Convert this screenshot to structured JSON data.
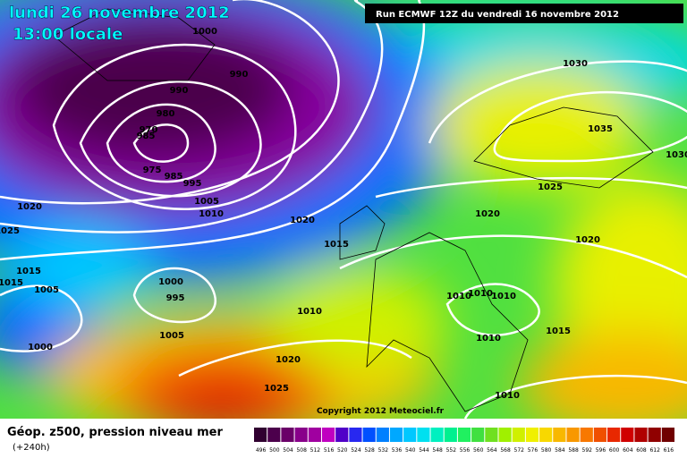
{
  "header": {
    "date": "lundi 26 novembre 2012",
    "time": "13:00 locale",
    "run": "Run ECMWF 12Z du vendredi 16 novembre 2012"
  },
  "isobar_labels": [
    "1000",
    "990",
    "990",
    "980",
    "970",
    "985",
    "975",
    "985",
    "995",
    "1005",
    "1010",
    "1020",
    "1025",
    "1020",
    "1015",
    "1015",
    "1015",
    "1005",
    "1000",
    "995",
    "1010",
    "1005",
    "1000",
    "1020",
    "1025",
    "1030",
    "1035",
    "1030",
    "1025",
    "1020",
    "1020",
    "1010",
    "1010",
    "1010",
    "1010",
    "1015",
    "1010"
  ],
  "copyright": "Copyright 2012 Meteociel.fr",
  "footer": {
    "title": "Géop. z500, pression niveau mer",
    "lead": "(+240h)"
  },
  "scale": {
    "labels": [
      496,
      500,
      504,
      508,
      512,
      516,
      520,
      524,
      528,
      532,
      536,
      540,
      544,
      548,
      552,
      556,
      560,
      564,
      568,
      572,
      576,
      580,
      584,
      588,
      592,
      596,
      600,
      604,
      608,
      612,
      616
    ],
    "colors": [
      "#300030",
      "#4c004c",
      "#6a0068",
      "#88008a",
      "#a000a0",
      "#c000c0",
      "#5000c8",
      "#2828f0",
      "#0050ff",
      "#0080ff",
      "#00a8ff",
      "#00c8ff",
      "#00e0f0",
      "#00f0c0",
      "#00f090",
      "#20f060",
      "#40e040",
      "#70e020",
      "#a0f000",
      "#d0f000",
      "#f0f000",
      "#f8d800",
      "#f8b800",
      "#f89800",
      "#f87800",
      "#f05000",
      "#e82800",
      "#d00000",
      "#b00000",
      "#900000",
      "#700000"
    ]
  }
}
